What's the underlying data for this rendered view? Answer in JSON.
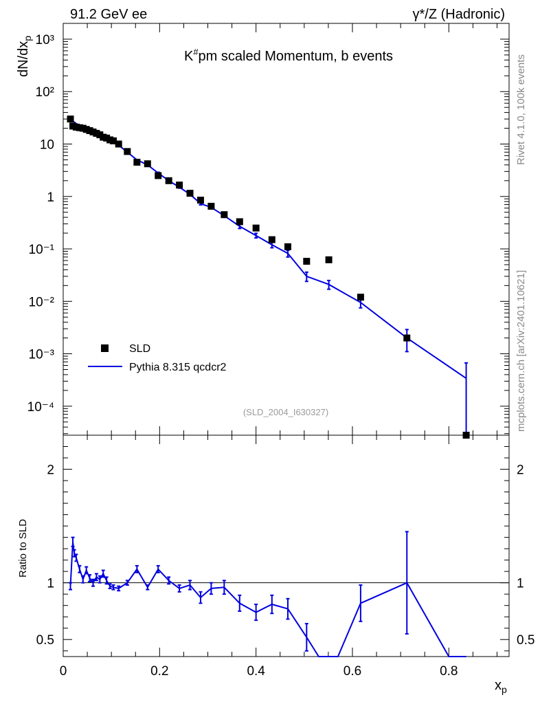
{
  "header": {
    "left": "91.2 GeV ee",
    "right": "γ*/Z (Hadronic)"
  },
  "side_text": {
    "version": "Rivet 4.1.0,  100k events",
    "site": "mcplots.cern.ch [arXiv:2401.10621]"
  },
  "watermark": "(SLD_2004_I630327)",
  "colors": {
    "data": "#000000",
    "mc": "#0000e0",
    "frame": "#000000"
  },
  "chart_data": [
    {
      "type": "scatter",
      "panel": "main",
      "title": "K#pm scaled Momentum, b events",
      "ylabel": "dN/dx_p",
      "yscale": "log",
      "ylim": [
        2.8e-05,
        2000
      ],
      "xlim": [
        0,
        0.925
      ],
      "y_ticks": [
        {
          "v": 1000,
          "label": "10³"
        },
        {
          "v": 100,
          "label": "10²"
        },
        {
          "v": 10,
          "label": "10"
        },
        {
          "v": 1,
          "label": "1"
        },
        {
          "v": 0.1,
          "label": "10⁻¹"
        },
        {
          "v": 0.01,
          "label": "10⁻²"
        },
        {
          "v": 0.001,
          "label": "10⁻³"
        },
        {
          "v": 0.0001,
          "label": "10⁻⁴"
        }
      ],
      "legend": {
        "position": "bottom-left",
        "data_label": "SLD",
        "mc_label": "Pythia 8.315 qcdcr2"
      },
      "series": [
        {
          "name": "SLD",
          "style": "markers",
          "x": [
            0.015,
            0.02,
            0.027,
            0.034,
            0.041,
            0.048,
            0.055,
            0.062,
            0.069,
            0.076,
            0.083,
            0.09,
            0.097,
            0.104,
            0.115,
            0.133,
            0.153,
            0.175,
            0.197,
            0.219,
            0.241,
            0.263,
            0.285,
            0.307,
            0.334,
            0.366,
            0.4,
            0.433,
            0.466,
            0.505,
            0.551,
            0.617,
            0.713,
            0.836
          ],
          "y": [
            30,
            22,
            21,
            20.5,
            20,
            19,
            18,
            17,
            16,
            15,
            13.5,
            13,
            12,
            11.5,
            10,
            7.2,
            4.5,
            4.2,
            2.5,
            2.0,
            1.65,
            1.15,
            0.85,
            0.65,
            0.45,
            0.33,
            0.25,
            0.15,
            0.11,
            0.058,
            0.062,
            0.012,
            0.002,
            2.8e-05
          ]
        },
        {
          "name": "Pythia 8.315 qcdcr2",
          "style": "line",
          "x": [
            0.015,
            0.02,
            0.027,
            0.034,
            0.041,
            0.048,
            0.055,
            0.062,
            0.069,
            0.076,
            0.083,
            0.09,
            0.097,
            0.104,
            0.115,
            0.133,
            0.153,
            0.175,
            0.197,
            0.219,
            0.241,
            0.263,
            0.285,
            0.307,
            0.334,
            0.366,
            0.4,
            0.433,
            0.466,
            0.505,
            0.551,
            0.617,
            0.713,
            0.836
          ],
          "y": [
            28,
            27.5,
            24.5,
            23,
            20.5,
            20,
            18,
            17,
            16,
            15.3,
            14,
            12.5,
            11.6,
            10.5,
            9.5,
            7.0,
            5.0,
            4.0,
            2.8,
            2.0,
            1.5,
            1.1,
            0.73,
            0.62,
            0.43,
            0.27,
            0.18,
            0.12,
            0.082,
            0.03,
            0.021,
            0.0095,
            0.002,
            0.00034
          ],
          "yerr": [
            0.6,
            0.6,
            0.5,
            0.5,
            0.4,
            0.4,
            0.4,
            0.4,
            0.3,
            0.3,
            0.3,
            0.3,
            0.3,
            0.3,
            0.2,
            0.2,
            0.15,
            0.12,
            0.1,
            0.08,
            0.06,
            0.05,
            0.04,
            0.035,
            0.03,
            0.025,
            0.018,
            0.015,
            0.012,
            0.006,
            0.004,
            0.002,
            0.0009,
            0.00033
          ]
        }
      ]
    },
    {
      "type": "line",
      "panel": "ratio",
      "ylabel": "Ratio to SLD",
      "xlabel": "x_p",
      "ylim": [
        0.35,
        2.3
      ],
      "xlim": [
        0,
        0.925
      ],
      "reference": 1,
      "y_ticks": [
        {
          "v": 0.5,
          "label": "0.5"
        },
        {
          "v": 1,
          "label": "1"
        },
        {
          "v": 2,
          "label": "2"
        }
      ],
      "x_ticks": [
        {
          "v": 0,
          "label": "0"
        },
        {
          "v": 0.2,
          "label": "0.2"
        },
        {
          "v": 0.4,
          "label": "0.4"
        },
        {
          "v": 0.6,
          "label": "0.6"
        },
        {
          "v": 0.8,
          "label": "0.8"
        }
      ],
      "series": [
        {
          "name": "Pythia 8.315 qcdcr2 / SLD",
          "x": [
            0.015,
            0.02,
            0.023,
            0.027,
            0.034,
            0.041,
            0.048,
            0.055,
            0.062,
            0.069,
            0.076,
            0.083,
            0.09,
            0.097,
            0.104,
            0.115,
            0.133,
            0.153,
            0.175,
            0.197,
            0.219,
            0.241,
            0.263,
            0.285,
            0.307,
            0.334,
            0.366,
            0.4,
            0.433,
            0.466,
            0.505,
            0.53,
            0.57,
            0.617,
            0.713,
            0.8,
            0.836
          ],
          "y": [
            0.97,
            1.36,
            1.26,
            1.22,
            1.12,
            1.03,
            1.11,
            1.04,
            1.0,
            1.05,
            1.03,
            1.08,
            1.02,
            0.97,
            0.96,
            0.95,
            1.0,
            1.12,
            0.96,
            1.12,
            1.02,
            0.95,
            0.98,
            0.87,
            0.95,
            0.96,
            0.82,
            0.74,
            0.81,
            0.77,
            0.52,
            0.35,
            0.35,
            0.82,
            1.0,
            0.35,
            0.35
          ],
          "yerr": [
            0.03,
            0.04,
            0.03,
            0.03,
            0.03,
            0.03,
            0.03,
            0.03,
            0.03,
            0.03,
            0.03,
            0.03,
            0.03,
            0.02,
            0.02,
            0.02,
            0.02,
            0.03,
            0.02,
            0.03,
            0.03,
            0.03,
            0.04,
            0.05,
            0.05,
            0.06,
            0.07,
            0.07,
            0.08,
            0.09,
            0.12,
            0,
            0,
            0.16,
            0.45,
            0,
            0
          ]
        }
      ]
    }
  ]
}
